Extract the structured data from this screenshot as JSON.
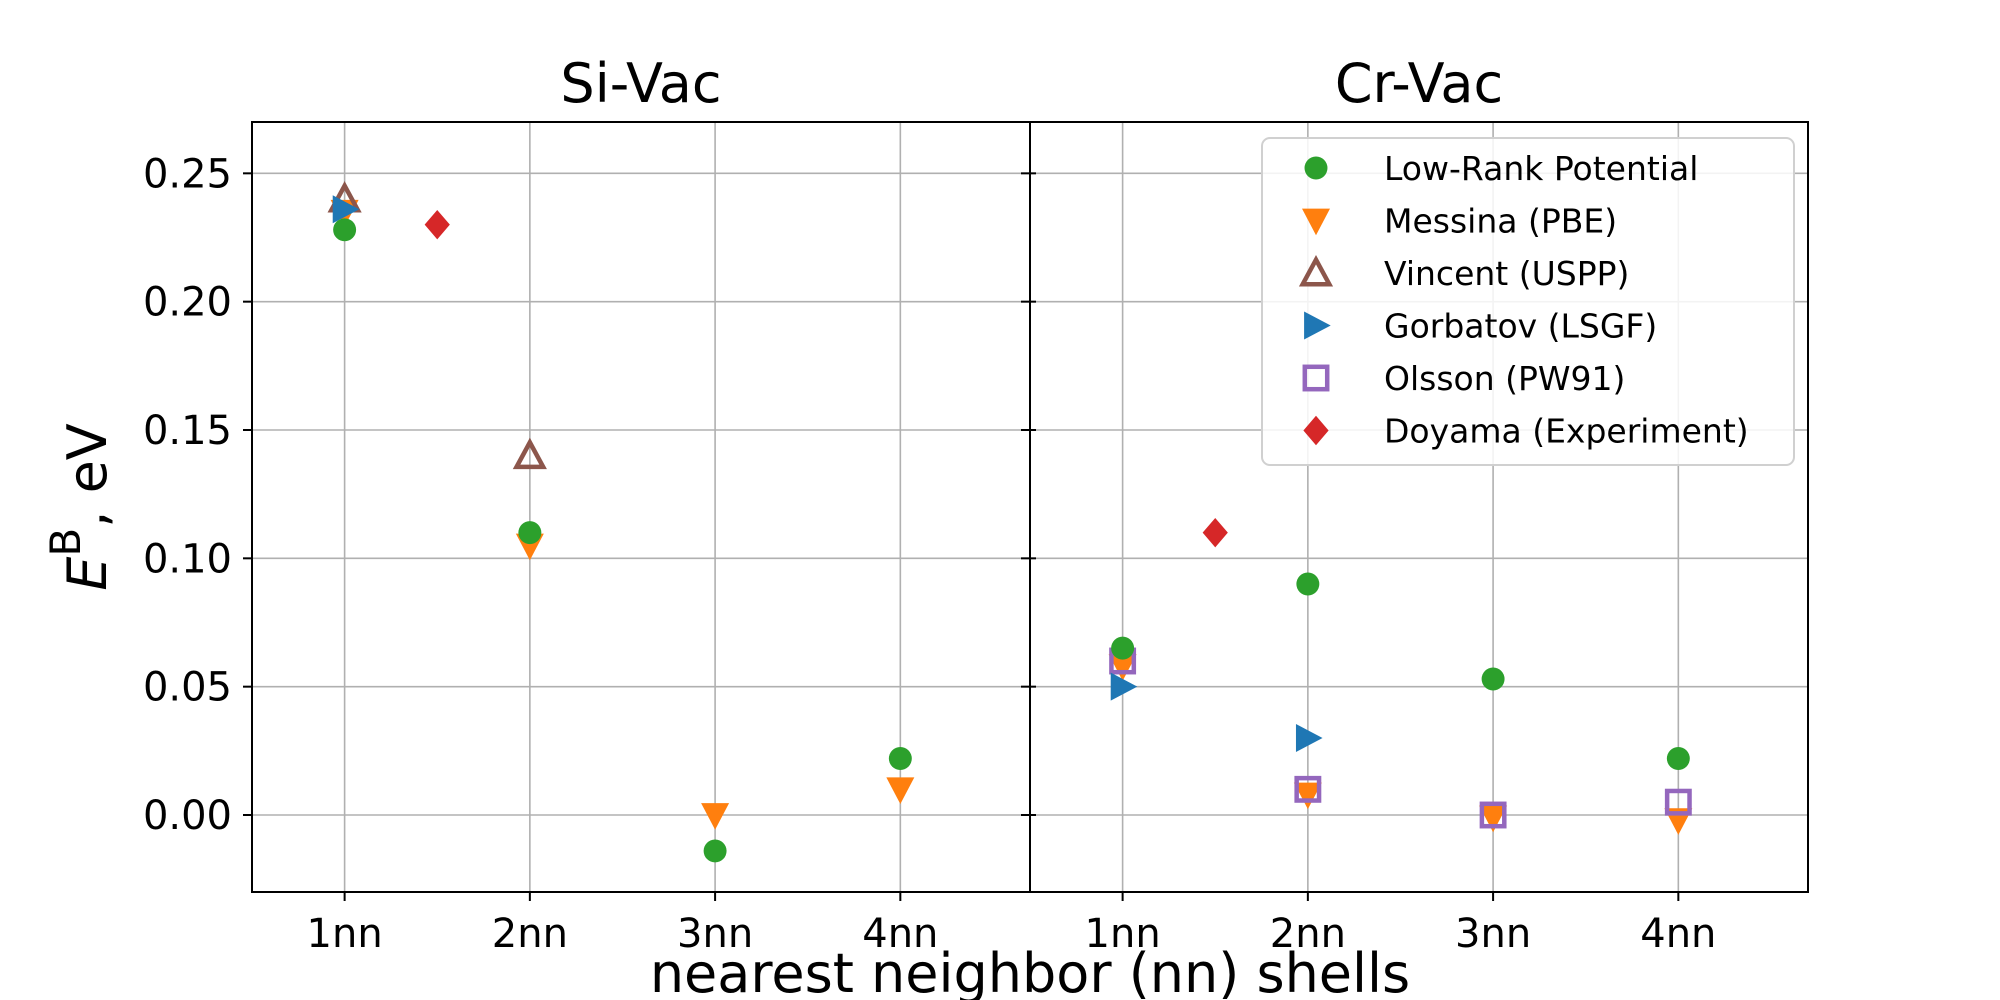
{
  "chart_data": {
    "type": "scatter",
    "xlabel": "nearest neighbor (nn) shells",
    "ylabel_main": "E",
    "ylabel_sup": "B",
    "ylabel_unit": ", eV",
    "ylim": [
      -0.03,
      0.27
    ],
    "yticks": [
      0.0,
      0.05,
      0.1,
      0.15,
      0.2,
      0.25
    ],
    "ytick_labels": [
      "0.00",
      "0.05",
      "0.10",
      "0.15",
      "0.20",
      "0.25"
    ],
    "xlim": [
      0.5,
      4.7
    ],
    "categories": [
      "1nn",
      "2nn",
      "3nn",
      "4nn"
    ],
    "grid": true,
    "legend_location": "top-right of Cr-Vac panel",
    "series_styles": [
      {
        "key": "lowrank",
        "name": "Low-Rank Potential",
        "marker": "circle",
        "color": "#2ca02c",
        "filled": true
      },
      {
        "key": "messina",
        "name": "Messina (PBE)",
        "marker": "triangle-down",
        "color": "#ff7f0e",
        "filled": true
      },
      {
        "key": "vincent",
        "name": "Vincent (USPP)",
        "marker": "triangle-up",
        "color": "#8c564b",
        "filled": false
      },
      {
        "key": "gorbatov",
        "name": "Gorbatov (LSGF)",
        "marker": "triangle-right",
        "color": "#1f77b4",
        "filled": true
      },
      {
        "key": "olsson",
        "name": "Olsson (PW91)",
        "marker": "square",
        "color": "#9467bd",
        "filled": false
      },
      {
        "key": "doyama",
        "name": "Doyama (Experiment)",
        "marker": "diamond",
        "color": "#d62728",
        "filled": true
      }
    ],
    "panels": [
      {
        "title": "Si-Vac",
        "series": [
          {
            "key": "messina",
            "points": [
              [
                1,
                0.235
              ],
              [
                2,
                0.105
              ],
              [
                3,
                0.0
              ],
              [
                4,
                0.01
              ]
            ]
          },
          {
            "key": "vincent",
            "points": [
              [
                1,
                0.24
              ],
              [
                2,
                0.14
              ]
            ]
          },
          {
            "key": "gorbatov",
            "points": [
              [
                1,
                0.236
              ]
            ]
          },
          {
            "key": "doyama",
            "points": [
              [
                1.5,
                0.23
              ]
            ]
          },
          {
            "key": "lowrank",
            "points": [
              [
                1,
                0.228
              ],
              [
                2,
                0.11
              ],
              [
                3,
                -0.014
              ],
              [
                4,
                0.022
              ]
            ]
          }
        ]
      },
      {
        "title": "Cr-Vac",
        "series": [
          {
            "key": "messina",
            "points": [
              [
                1,
                0.058
              ],
              [
                2,
                0.008
              ],
              [
                3,
                -0.001
              ],
              [
                4,
                -0.002
              ]
            ]
          },
          {
            "key": "olsson",
            "points": [
              [
                1,
                0.06
              ],
              [
                2,
                0.01
              ],
              [
                3,
                0.0
              ],
              [
                4,
                0.005
              ]
            ]
          },
          {
            "key": "gorbatov",
            "points": [
              [
                1,
                0.05
              ],
              [
                2,
                0.03
              ]
            ]
          },
          {
            "key": "doyama",
            "points": [
              [
                1.5,
                0.11
              ]
            ]
          },
          {
            "key": "lowrank",
            "points": [
              [
                1,
                0.065
              ],
              [
                2,
                0.09
              ],
              [
                3,
                0.053
              ],
              [
                4,
                0.022
              ]
            ]
          }
        ]
      }
    ]
  }
}
